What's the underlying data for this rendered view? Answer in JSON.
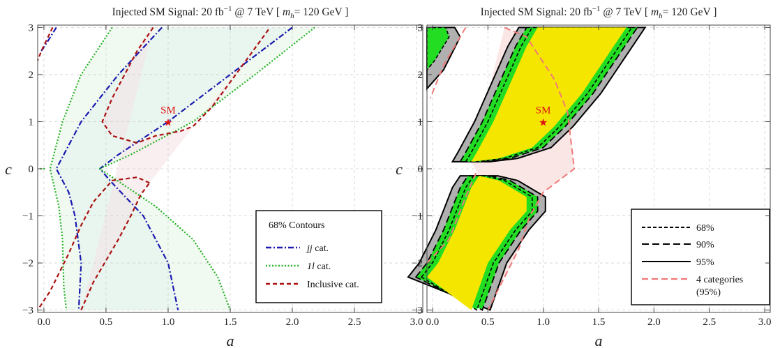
{
  "chart_data": [
    {
      "type": "contour",
      "title": "Injected SM Signal: 20 fb⁻¹ @ 7 TeV [ m_h= 120 GeV ]",
      "title_parts": {
        "prefix": "Injected SM Signal: 20 fb",
        "sup": "−1",
        "middle": " @ 7 TeV [ ",
        "mvar": "m",
        "msub": "h",
        "suffix": "= 120 GeV ]"
      },
      "xlabel": "a",
      "ylabel": "c",
      "xlim": [
        -0.05,
        3.05
      ],
      "ylim": [
        -3.05,
        3.05
      ],
      "xticks": [
        "0.0",
        "0.5",
        "1.0",
        "1.5",
        "2.0",
        "2.5",
        "3.0"
      ],
      "yticks": [
        "−3",
        "−2",
        "−1",
        "0",
        "1",
        "2",
        "3"
      ],
      "grid": true,
      "legend_placement": "bottom-right",
      "legend_title": "68% Contours",
      "sm_point": {
        "a": 1.0,
        "c": 1.0,
        "label": "SM"
      },
      "series": [
        {
          "name_it": "jj",
          "name_rest": " cat.",
          "color": "#1a1ab0",
          "dash": "8,3,2,3",
          "fill": "#d9eef7",
          "curves": [
            [
              [
                -0.02,
                2.5
              ],
              [
                0.03,
                2.7
              ],
              [
                0.1,
                3.0
              ]
            ],
            [
              [
                2.0,
                3.0
              ],
              [
                1.5,
                2.0
              ],
              [
                1.0,
                1.0
              ],
              [
                0.6,
                0.3
              ],
              [
                0.45,
                0.0
              ],
              [
                0.55,
                -0.3
              ],
              [
                0.8,
                -1.0
              ],
              [
                1.0,
                -2.0
              ],
              [
                1.08,
                -3.0
              ]
            ],
            [
              [
                0.95,
                3.0
              ],
              [
                0.6,
                2.0
              ],
              [
                0.3,
                1.0
              ],
              [
                0.1,
                0.0
              ],
              [
                0.2,
                -0.5
              ],
              [
                0.25,
                -1.0
              ],
              [
                0.3,
                -2.0
              ],
              [
                0.28,
                -3.0
              ]
            ]
          ]
        },
        {
          "name_it": "1l",
          "name_rest": " cat.",
          "color": "#22b222",
          "dash": "2,2.5",
          "fill": "#e6f6e6",
          "curves": [
            [
              [
                2.18,
                3.0
              ],
              [
                1.7,
                2.0
              ],
              [
                1.2,
                1.0
              ],
              [
                0.7,
                0.3
              ],
              [
                0.45,
                0.0
              ],
              [
                0.9,
                -0.8
              ],
              [
                1.2,
                -1.5
              ],
              [
                1.4,
                -2.3
              ],
              [
                1.5,
                -3.0
              ]
            ],
            [
              [
                0.55,
                3.0
              ],
              [
                0.3,
                2.0
              ],
              [
                0.15,
                1.0
              ],
              [
                0.05,
                0.0
              ],
              [
                0.12,
                -0.8
              ],
              [
                0.15,
                -1.5
              ],
              [
                0.16,
                -2.5
              ],
              [
                0.18,
                -3.0
              ]
            ],
            [
              [
                -0.03,
                0.0
              ],
              [
                0.02,
                0.0
              ]
            ]
          ]
        },
        {
          "name_it": "",
          "name_rest": "Inclusive cat.",
          "color": "#aa1111",
          "dash": "6,4",
          "fill": "#f4e2e6",
          "curves": [
            [
              [
                0.07,
                3.0
              ],
              [
                -0.02,
                2.5
              ],
              [
                -0.05,
                2.3
              ]
            ],
            [
              [
                0.88,
                3.0
              ],
              [
                0.75,
                2.5
              ],
              [
                0.55,
                1.5
              ],
              [
                0.47,
                1.0
              ],
              [
                0.55,
                0.7
              ],
              [
                0.75,
                0.55
              ],
              [
                0.9,
                0.7
              ],
              [
                1.1,
                0.8
              ],
              [
                1.2,
                0.9
              ],
              [
                1.35,
                1.3
              ],
              [
                1.6,
                2.2
              ],
              [
                1.82,
                3.0
              ]
            ],
            [
              [
                0.85,
                -0.3
              ],
              [
                0.75,
                -0.18
              ],
              [
                0.55,
                -0.25
              ],
              [
                0.4,
                -0.7
              ],
              [
                0.3,
                -1.2
              ],
              [
                0.2,
                -1.8
              ],
              [
                0.05,
                -2.6
              ],
              [
                -0.05,
                -3.0
              ]
            ],
            [
              [
                0.3,
                -3.0
              ],
              [
                0.4,
                -2.4
              ],
              [
                0.6,
                -1.5
              ],
              [
                0.7,
                -1.0
              ],
              [
                0.78,
                -0.55
              ],
              [
                0.85,
                -0.3
              ]
            ]
          ]
        }
      ]
    },
    {
      "type": "contour",
      "title": "Injected SM Signal: 20 fb⁻¹ @ 7 TeV [ m_h= 120 GeV ]",
      "title_parts": {
        "prefix": "Injected SM Signal: 20 fb",
        "sup": "−1",
        "middle": " @ 7 TeV [ ",
        "mvar": "m",
        "msub": "h",
        "suffix": "= 120 GeV ]"
      },
      "xlabel": "a",
      "ylabel": "c",
      "xlim": [
        -0.05,
        3.05
      ],
      "ylim": [
        -3.05,
        3.05
      ],
      "xticks": [
        "0.0",
        "0.5",
        "1.0",
        "1.5",
        "2.0",
        "2.5",
        "3.0"
      ],
      "yticks": [
        "−3",
        "−2",
        "−1",
        "0",
        "1",
        "2",
        "3"
      ],
      "grid": true,
      "legend_placement": "bottom-right",
      "sm_point": {
        "a": 1.0,
        "c": 1.0,
        "label": "SM"
      },
      "band_colors": {
        "inner": "#f5e600",
        "middle": "#22dd22",
        "outer": "#b0b0b0"
      },
      "regions": {
        "upper": {
          "left": [
            [
              0.35,
              0.15
            ],
            [
              0.4,
              0.35
            ],
            [
              0.55,
              1.0
            ],
            [
              0.7,
              1.8
            ],
            [
              0.85,
              2.6
            ],
            [
              0.95,
              3.0
            ]
          ],
          "right": [
            [
              1.75,
              3.0
            ],
            [
              1.55,
              2.3
            ],
            [
              1.35,
              1.6
            ],
            [
              1.1,
              0.9
            ],
            [
              0.9,
              0.45
            ],
            [
              0.6,
              0.22
            ],
            [
              0.35,
              0.15
            ]
          ],
          "offsets": [
            0.07,
            0.05,
            0.05
          ]
        },
        "lower": {
          "left": [
            [
              -0.05,
              -2.3
            ],
            [
              0.05,
              -2.0
            ],
            [
              0.2,
              -1.3
            ],
            [
              0.35,
              -0.4
            ],
            [
              0.42,
              -0.15
            ]
          ],
          "right": [
            [
              0.42,
              -0.15
            ],
            [
              0.6,
              -0.25
            ],
            [
              0.85,
              -0.6
            ],
            [
              0.85,
              -0.9
            ],
            [
              0.7,
              -1.3
            ],
            [
              0.5,
              -2.0
            ],
            [
              0.35,
              -3.0
            ]
          ],
          "offsets": [
            0.07,
            0.05,
            0.05
          ]
        },
        "four_cat": [
          [
            0.65,
            3.0
          ],
          [
            0.85,
            2.8
          ],
          [
            1.1,
            1.9
          ],
          [
            1.22,
            1.2
          ],
          [
            1.25,
            0.6
          ],
          [
            1.28,
            0.0
          ],
          [
            1.0,
            -0.5
          ],
          [
            0.88,
            -1.0
          ],
          [
            0.78,
            -1.7
          ],
          [
            0.5,
            -3.0
          ]
        ],
        "four_cat_upper_left": [
          [
            0.0,
            2.0
          ],
          [
            -0.02,
            1.7
          ]
        ],
        "four_cat_lower": [
          [
            -0.05,
            -2.0
          ],
          [
            0.15,
            -1.5
          ],
          [
            0.3,
            -0.6
          ],
          [
            0.4,
            -0.05
          ]
        ]
      },
      "legend": [
        {
          "label": "68%",
          "style": "short-dash",
          "color": "#000000"
        },
        {
          "label": "90%",
          "style": "long-dash",
          "color": "#000000"
        },
        {
          "label": "95%",
          "style": "solid",
          "color": "#000000"
        },
        {
          "label": "4 categories",
          "label2": "(95%)",
          "style": "dash",
          "color": "#f07878"
        }
      ]
    }
  ]
}
